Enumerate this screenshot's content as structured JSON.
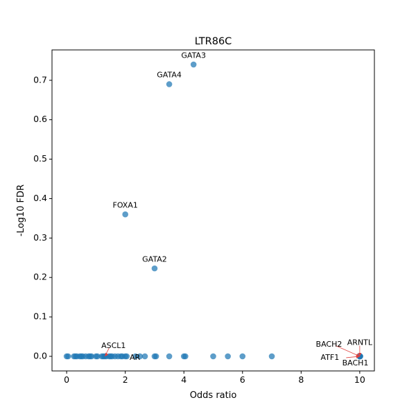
{
  "chart_data": {
    "type": "scatter",
    "title": "LTR86C",
    "xlabel": "Odds ratio",
    "ylabel": "-Log10 FDR",
    "xlim": [
      -0.5,
      10.5
    ],
    "ylim": [
      -0.037,
      0.777
    ],
    "xticks": [
      0,
      2,
      4,
      6,
      8,
      10
    ],
    "yticks": [
      0.0,
      0.1,
      0.2,
      0.3,
      0.4,
      0.5,
      0.6,
      0.7
    ],
    "xtick_labels": [
      "0",
      "2",
      "4",
      "6",
      "8",
      "10"
    ],
    "ytick_labels": [
      "0.0",
      "0.1",
      "0.2",
      "0.3",
      "0.4",
      "0.5",
      "0.6",
      "0.7"
    ],
    "grid": false,
    "marker_color": "#1f77b4",
    "annotation_arrow_color": "#e0423f",
    "points": [
      {
        "x": 0.0,
        "y": 0.0
      },
      {
        "x": 0.05,
        "y": 0.0
      },
      {
        "x": 0.25,
        "y": 0.0
      },
      {
        "x": 0.3,
        "y": 0.0
      },
      {
        "x": 0.35,
        "y": 0.0
      },
      {
        "x": 0.45,
        "y": 0.0
      },
      {
        "x": 0.5,
        "y": 0.0
      },
      {
        "x": 0.55,
        "y": 0.0
      },
      {
        "x": 0.65,
        "y": 0.0
      },
      {
        "x": 0.75,
        "y": 0.0
      },
      {
        "x": 0.8,
        "y": 0.0
      },
      {
        "x": 0.85,
        "y": 0.0
      },
      {
        "x": 1.0,
        "y": 0.0
      },
      {
        "x": 1.05,
        "y": 0.0
      },
      {
        "x": 1.2,
        "y": 0.0
      },
      {
        "x": 1.25,
        "y": 0.0
      },
      {
        "x": 1.35,
        "y": 0.0
      },
      {
        "x": 1.45,
        "y": 0.0
      },
      {
        "x": 1.5,
        "y": 0.0
      },
      {
        "x": 1.55,
        "y": 0.0
      },
      {
        "x": 1.65,
        "y": 0.0
      },
      {
        "x": 1.75,
        "y": 0.0
      },
      {
        "x": 1.85,
        "y": 0.0
      },
      {
        "x": 2.0,
        "y": 0.0
      },
      {
        "x": 2.05,
        "y": 0.0
      },
      {
        "x": 2.35,
        "y": 0.0
      },
      {
        "x": 2.5,
        "y": 0.0
      },
      {
        "x": 2.67,
        "y": 0.0
      },
      {
        "x": 3.0,
        "y": 0.0
      },
      {
        "x": 3.05,
        "y": 0.0
      },
      {
        "x": 3.5,
        "y": 0.0
      },
      {
        "x": 4.0,
        "y": 0.0
      },
      {
        "x": 4.05,
        "y": 0.0
      },
      {
        "x": 5.0,
        "y": 0.0
      },
      {
        "x": 5.5,
        "y": 0.0
      },
      {
        "x": 6.0,
        "y": 0.0
      },
      {
        "x": 7.0,
        "y": 0.0
      },
      {
        "x": 10.0,
        "y": 0.0
      },
      {
        "x": 10.02,
        "y": 0.0
      },
      {
        "x": 4.33,
        "y": 0.74,
        "label": "GATA3"
      },
      {
        "x": 3.5,
        "y": 0.69,
        "label": "GATA4"
      },
      {
        "x": 2.0,
        "y": 0.36,
        "label": "FOXA1"
      },
      {
        "x": 3.0,
        "y": 0.223,
        "label": "GATA2"
      },
      {
        "x": 1.3,
        "y": 0.0,
        "label": "ASCL1"
      },
      {
        "x": 1.9,
        "y": 0.0,
        "label": "AR"
      },
      {
        "x": 10.0,
        "y": 0.0,
        "label": "BACH2"
      },
      {
        "x": 10.0,
        "y": 0.0,
        "label": "ARNTL"
      },
      {
        "x": 10.0,
        "y": 0.0,
        "label": "ATF1"
      },
      {
        "x": 10.0,
        "y": 0.0,
        "label": "BACH1"
      }
    ],
    "annotations": [
      {
        "text": "GATA3",
        "x": 4.33,
        "y": 0.74,
        "tx": 4.33,
        "ty": 0.762,
        "anchor": "middle",
        "arrow": false
      },
      {
        "text": "GATA4",
        "x": 3.5,
        "y": 0.69,
        "tx": 3.5,
        "ty": 0.713,
        "anchor": "middle",
        "arrow": false
      },
      {
        "text": "FOXA1",
        "x": 2.0,
        "y": 0.36,
        "tx": 2.0,
        "ty": 0.382,
        "anchor": "middle",
        "arrow": false
      },
      {
        "text": "GATA2",
        "x": 3.0,
        "y": 0.223,
        "tx": 3.0,
        "ty": 0.245,
        "anchor": "middle",
        "arrow": false
      },
      {
        "text": "ASCL1",
        "x": 1.3,
        "y": 0.0,
        "tx": 1.6,
        "ty": 0.026,
        "anchor": "middle",
        "arrow": true
      },
      {
        "text": "AR",
        "x": 1.9,
        "y": 0.0,
        "tx": 2.15,
        "ty": -0.004,
        "anchor": "start",
        "arrow": false
      },
      {
        "text": "BACH2",
        "x": 10.0,
        "y": 0.0,
        "tx": 8.95,
        "ty": 0.03,
        "anchor": "middle",
        "arrow": true
      },
      {
        "text": "ARNTL",
        "x": 10.0,
        "y": 0.0,
        "tx": 10.0,
        "ty": 0.034,
        "anchor": "middle",
        "arrow": true
      },
      {
        "text": "ATF1",
        "x": 10.0,
        "y": 0.0,
        "tx": 9.3,
        "ty": -0.004,
        "anchor": "end",
        "arrow": true
      },
      {
        "text": "BACH1",
        "x": 10.0,
        "y": 0.0,
        "tx": 9.85,
        "ty": -0.018,
        "anchor": "middle",
        "arrow": false
      }
    ]
  }
}
